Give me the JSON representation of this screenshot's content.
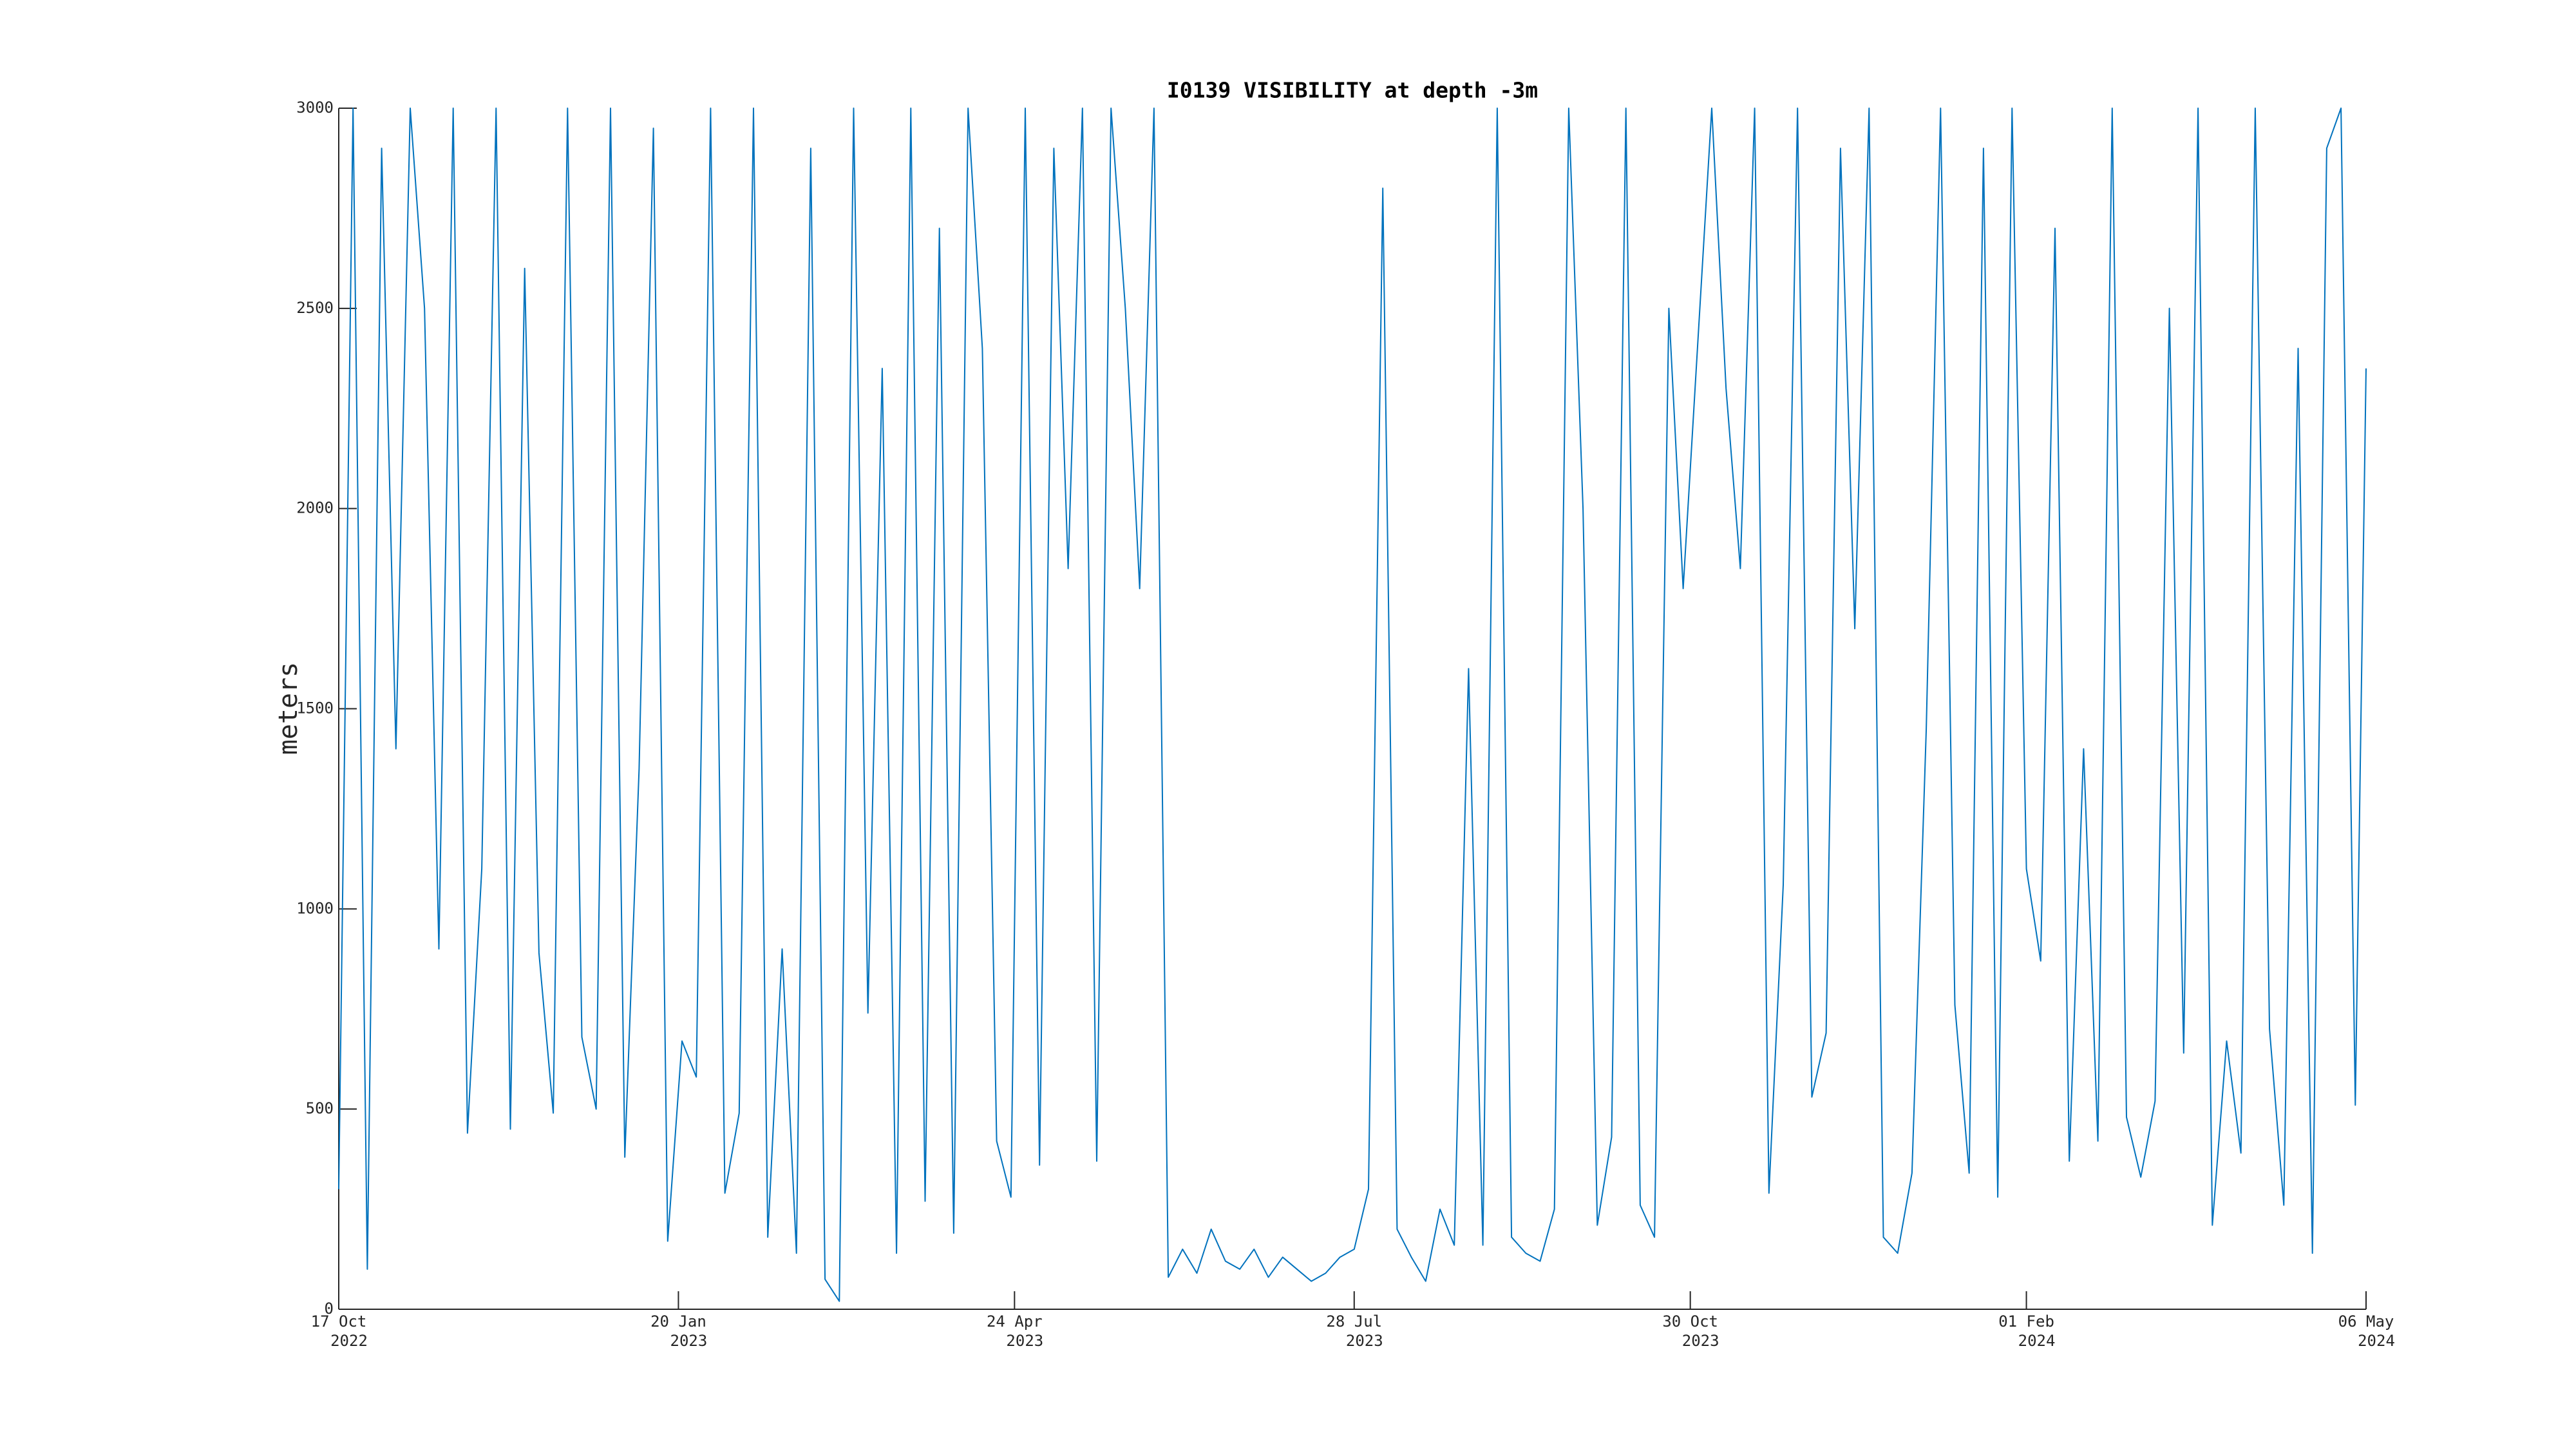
{
  "chart_data": {
    "type": "line",
    "title": "I0139 VISIBILITY at depth -3m",
    "ylabel": "meters",
    "color": "#0072bd",
    "grid": false,
    "xlim": [
      "2022-10-17",
      "2024-05-06"
    ],
    "ylim": [
      0,
      3000
    ],
    "yticks": [
      0,
      500,
      1000,
      1500,
      2000,
      2500,
      3000
    ],
    "xticks": [
      {
        "value": "2022-10-17",
        "label": "17 Oct",
        "label2": "2022"
      },
      {
        "value": "2023-01-20",
        "label": "20 Jan",
        "label2": "2023"
      },
      {
        "value": "2023-04-24",
        "label": "24 Apr",
        "label2": "2023"
      },
      {
        "value": "2023-07-28",
        "label": "28 Jul",
        "label2": "2023"
      },
      {
        "value": "2023-10-30",
        "label": "30 Oct",
        "label2": "2023"
      },
      {
        "value": "2024-02-01",
        "label": "01 Feb",
        "label2": "2024"
      },
      {
        "value": "2024-05-06",
        "label": "06 May",
        "label2": "2024"
      }
    ],
    "x": [
      "2022-10-17",
      "2022-10-21",
      "2022-10-25",
      "2022-10-29",
      "2022-11-02",
      "2022-11-06",
      "2022-11-10",
      "2022-11-14",
      "2022-11-18",
      "2022-11-22",
      "2022-11-26",
      "2022-11-30",
      "2022-12-04",
      "2022-12-08",
      "2022-12-12",
      "2022-12-16",
      "2022-12-20",
      "2022-12-24",
      "2022-12-28",
      "2023-01-01",
      "2023-01-05",
      "2023-01-09",
      "2023-01-13",
      "2023-01-17",
      "2023-01-21",
      "2023-01-25",
      "2023-01-29",
      "2023-02-02",
      "2023-02-06",
      "2023-02-10",
      "2023-02-14",
      "2023-02-18",
      "2023-02-22",
      "2023-02-26",
      "2023-03-02",
      "2023-03-06",
      "2023-03-10",
      "2023-03-14",
      "2023-03-18",
      "2023-03-22",
      "2023-03-26",
      "2023-03-30",
      "2023-04-03",
      "2023-04-07",
      "2023-04-11",
      "2023-04-15",
      "2023-04-19",
      "2023-04-23",
      "2023-04-27",
      "2023-05-01",
      "2023-05-05",
      "2023-05-09",
      "2023-05-13",
      "2023-05-17",
      "2023-05-21",
      "2023-05-25",
      "2023-05-29",
      "2023-06-02",
      "2023-06-06",
      "2023-06-10",
      "2023-06-14",
      "2023-06-18",
      "2023-06-22",
      "2023-06-26",
      "2023-06-30",
      "2023-07-04",
      "2023-07-08",
      "2023-07-12",
      "2023-07-16",
      "2023-07-20",
      "2023-07-24",
      "2023-07-28",
      "2023-08-01",
      "2023-08-05",
      "2023-08-09",
      "2023-08-13",
      "2023-08-17",
      "2023-08-21",
      "2023-08-25",
      "2023-08-29",
      "2023-09-02",
      "2023-09-06",
      "2023-09-10",
      "2023-09-14",
      "2023-09-18",
      "2023-09-22",
      "2023-09-26",
      "2023-09-30",
      "2023-10-04",
      "2023-10-08",
      "2023-10-12",
      "2023-10-16",
      "2023-10-20",
      "2023-10-24",
      "2023-10-28",
      "2023-11-01",
      "2023-11-05",
      "2023-11-09",
      "2023-11-13",
      "2023-11-17",
      "2023-11-21",
      "2023-11-25",
      "2023-11-29",
      "2023-12-03",
      "2023-12-07",
      "2023-12-11",
      "2023-12-15",
      "2023-12-19",
      "2023-12-23",
      "2023-12-27",
      "2023-12-31",
      "2024-01-04",
      "2024-01-08",
      "2024-01-12",
      "2024-01-16",
      "2024-01-20",
      "2024-01-24",
      "2024-01-28",
      "2024-02-01",
      "2024-02-05",
      "2024-02-09",
      "2024-02-13",
      "2024-02-17",
      "2024-02-21",
      "2024-02-25",
      "2024-02-29",
      "2024-03-04",
      "2024-03-08",
      "2024-03-12",
      "2024-03-16",
      "2024-03-20",
      "2024-03-24",
      "2024-03-28",
      "2024-04-01",
      "2024-04-05",
      "2024-04-09",
      "2024-04-13",
      "2024-04-17",
      "2024-04-21",
      "2024-04-25",
      "2024-04-29",
      "2024-05-03",
      "2024-05-06"
    ],
    "values": [
      300,
      3000,
      100,
      2900,
      1400,
      3000,
      2500,
      900,
      3000,
      440,
      1100,
      3000,
      450,
      2600,
      890,
      490,
      3000,
      680,
      500,
      3000,
      380,
      1350,
      2950,
      170,
      670,
      580,
      3000,
      290,
      490,
      3000,
      180,
      900,
      140,
      2900,
      75,
      20,
      3000,
      740,
      2350,
      140,
      3000,
      270,
      2700,
      190,
      3000,
      2400,
      420,
      280,
      3000,
      360,
      2900,
      1850,
      3000,
      370,
      3000,
      2500,
      1800,
      3000,
      80,
      150,
      90,
      200,
      120,
      100,
      150,
      80,
      130,
      100,
      70,
      90,
      130,
      150,
      300,
      2800,
      200,
      130,
      70,
      250,
      160,
      1600,
      160,
      3000,
      180,
      140,
      120,
      250,
      3000,
      2000,
      210,
      430,
      3000,
      260,
      180,
      2500,
      1800,
      2400,
      3000,
      2300,
      1850,
      3000,
      290,
      1060,
      3000,
      530,
      690,
      2900,
      1700,
      3000,
      180,
      140,
      340,
      1450,
      3000,
      760,
      340,
      2900,
      280,
      3000,
      1100,
      870,
      2700,
      370,
      1400,
      420,
      3000,
      480,
      330,
      520,
      2500,
      640,
      3000,
      210,
      670,
      390,
      3000,
      700,
      260,
      2400,
      140,
      2900,
      3000,
      510,
      2350
    ]
  }
}
